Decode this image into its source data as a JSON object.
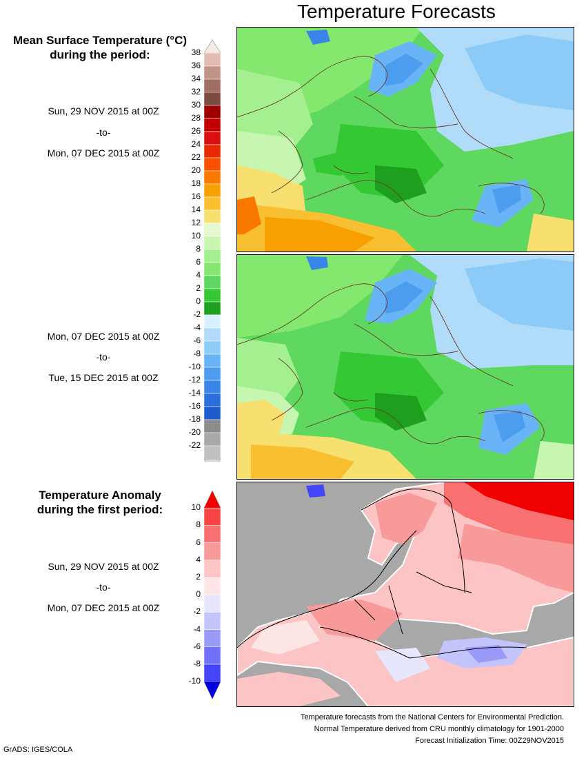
{
  "title": "Temperature Forecasts",
  "temperature_legend": {
    "heading_line1": "Mean Surface Temperature (°C)",
    "heading_line2": "during the period:",
    "ticks": [
      "38",
      "36",
      "34",
      "32",
      "30",
      "28",
      "26",
      "24",
      "22",
      "20",
      "18",
      "16",
      "14",
      "12",
      "10",
      "8",
      "6",
      "4",
      "2",
      "0",
      "-2",
      "-4",
      "-6",
      "-8",
      "-10",
      "-12",
      "-14",
      "-16",
      "-18",
      "-20",
      "-22"
    ]
  },
  "period1": {
    "start": "Sun, 29 NOV 2015 at 00Z",
    "sep": "-to-",
    "end": "Mon, 07 DEC 2015 at 00Z"
  },
  "period2": {
    "start": "Mon, 07 DEC 2015 at 00Z",
    "sep": "-to-",
    "end": "Tue, 15 DEC 2015 at 00Z"
  },
  "anomaly_legend": {
    "heading_line1": "Temperature Anomaly",
    "heading_line2": "during the first period:",
    "ticks": [
      "10",
      "8",
      "6",
      "4",
      "2",
      "0",
      "-2",
      "-4",
      "-6",
      "-8",
      "-10"
    ]
  },
  "period3": {
    "start": "Sun, 29 NOV 2015 at 00Z",
    "sep": "-to-",
    "end": "Mon, 07 DEC 2015 at 00Z"
  },
  "footer": {
    "line1": "Temperature forecasts from the National Centers for Environmental Prediction.",
    "line2": "Normal Temperature derived from CRU monthly climatology for 1901-2000",
    "line3": "Forecast Initialization Time: 00Z29NOV2015"
  },
  "credit": "GrADS: IGES/COLA",
  "colors": {
    "temp_scale": [
      "#f5ece9",
      "#e2bcb0",
      "#c29486",
      "#a06e60",
      "#7c4a3e",
      "#a00000",
      "#c00000",
      "#d81010",
      "#e82a00",
      "#f85000",
      "#f87800",
      "#f8a000",
      "#f8c030",
      "#f8e070",
      "#e6f8d0",
      "#c6f6b0",
      "#a4f090",
      "#84e86e",
      "#5ed85e",
      "#34c834",
      "#1ea01e",
      "#d8f0ff",
      "#b0dcfa",
      "#8ccaf8",
      "#68b4f6",
      "#4c9cf0",
      "#3a86e8",
      "#2a70dc",
      "#1c5ccc",
      "#8c8c8c",
      "#a8a8a8",
      "#c0c0c0",
      "#d8d8d8"
    ],
    "anomaly_scale": [
      "#f00000",
      "#f84444",
      "#f87070",
      "#f89a9a",
      "#fcc4c4",
      "#ffe6e6",
      "#e6e6ff",
      "#c4c4fc",
      "#9a9af8",
      "#7070f8",
      "#4444f8",
      "#0000e0"
    ],
    "land_mask": "#a8a8a8"
  }
}
